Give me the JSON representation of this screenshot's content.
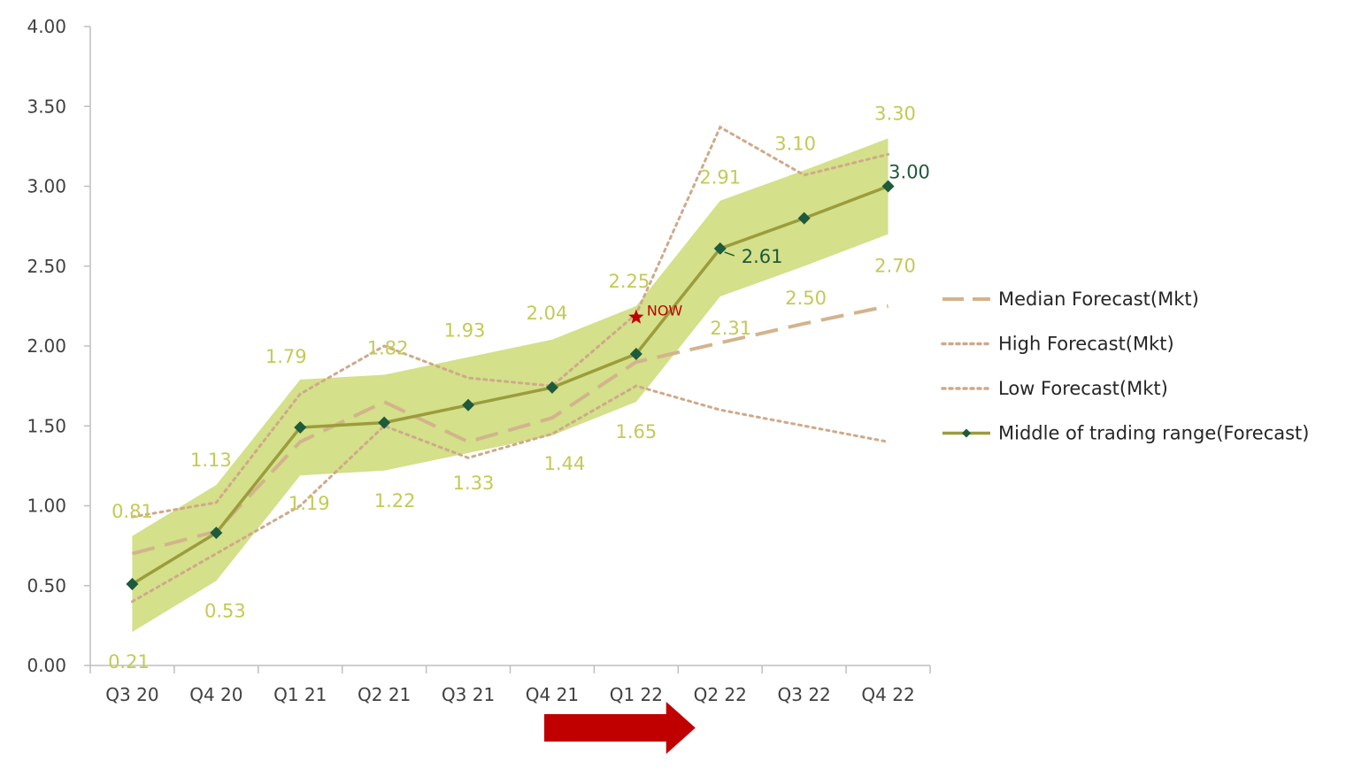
{
  "chart_data": {
    "type": "line",
    "categories": [
      "Q3 20",
      "Q4 20",
      "Q1 21",
      "Q2 21",
      "Q3 21",
      "Q4 21",
      "Q1 22",
      "Q2 22",
      "Q3 22",
      "Q4 22"
    ],
    "ylim": [
      0,
      4
    ],
    "yticks": [
      "0.00",
      "0.50",
      "1.00",
      "1.50",
      "2.00",
      "2.50",
      "3.00",
      "3.50",
      "4.00"
    ],
    "grid": false,
    "legend_position": "right",
    "series": [
      {
        "name": "Median Forecast(Mkt)",
        "style": "dashed",
        "color": "#d2b48c",
        "values": [
          0.7,
          0.84,
          1.4,
          1.65,
          1.4,
          1.55,
          1.9,
          2.02,
          2.14,
          2.25
        ]
      },
      {
        "name": "High Forecast(Mkt)",
        "style": "dotted",
        "color": "#cfa98a",
        "values": [
          0.93,
          1.02,
          1.7,
          2.0,
          1.8,
          1.75,
          2.2,
          3.37,
          3.07,
          3.2
        ]
      },
      {
        "name": "Low Forecast(Mkt)",
        "style": "dotted",
        "color": "#cfa98a",
        "values": [
          0.4,
          0.7,
          1.0,
          1.5,
          1.3,
          1.45,
          1.75,
          1.6,
          1.5,
          1.4
        ]
      },
      {
        "name": "Middle of trading range(Forecast)",
        "style": "solid-diamond",
        "color": "#9c9c3c",
        "marker_color": "#1e5a3c",
        "values": [
          0.51,
          0.83,
          1.49,
          1.52,
          1.63,
          1.74,
          1.95,
          2.61,
          2.8,
          3.0
        ]
      }
    ],
    "band": {
      "color": "#d4e08a",
      "upper": [
        0.81,
        1.13,
        1.79,
        1.82,
        1.93,
        2.04,
        2.25,
        2.91,
        3.1,
        3.3
      ],
      "lower": [
        0.21,
        0.53,
        1.19,
        1.22,
        1.33,
        1.44,
        1.65,
        2.31,
        2.5,
        2.7
      ]
    },
    "upper_labels": [
      "0.81",
      "1.13",
      "1.79",
      "1.82",
      "1.93",
      "2.04",
      "2.25",
      "2.91",
      "3.10",
      "3.30"
    ],
    "lower_labels": [
      "0.21",
      "0.53",
      "1.19",
      "1.22",
      "1.33",
      "1.44",
      "1.65",
      "2.31",
      "2.50",
      "2.70"
    ],
    "middle_labels": [
      {
        "index": 7,
        "text": "2.61"
      },
      {
        "index": 9,
        "text": "3.00"
      }
    ],
    "now_marker": {
      "label": "NOW",
      "x_index": 6,
      "value": 2.18,
      "color": "#c00000"
    },
    "arrow": {
      "color": "#c00000",
      "from_index": 5,
      "to_index": 7
    }
  }
}
